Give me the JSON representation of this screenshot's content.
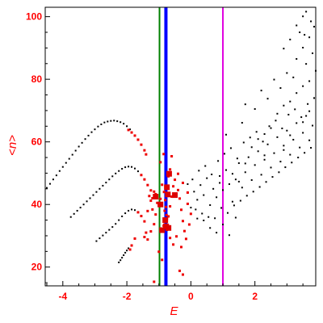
{
  "chart_data": {
    "type": "scatter",
    "title": "",
    "xlabel": "E",
    "ylabel": "<n>",
    "xlim": [
      -4.55,
      3.9
    ],
    "ylim": [
      14,
      103
    ],
    "x_ticks": [
      -4,
      -2,
      0,
      2
    ],
    "y_ticks": [
      20,
      40,
      60,
      80,
      100
    ],
    "grid": false,
    "colors": {
      "frame": "#000000",
      "text": "#ff0000",
      "black_points": "#000000",
      "red_points": "#ee0000",
      "line_green": "#008000",
      "line_blue": "#0000ff",
      "line_magenta": "#e000e0"
    },
    "vertical_lines": [
      {
        "x": -0.98,
        "color": "#008000"
      },
      {
        "x": -0.78,
        "color": "#0000ff"
      },
      {
        "x": 1.0,
        "color": "#e000e0"
      }
    ],
    "series": [
      {
        "color": "#000000",
        "marker_size": 2,
        "points": [
          [
            -4.5,
            45.3
          ],
          [
            -4.4,
            46.6
          ],
          [
            -4.3,
            48.0
          ],
          [
            -4.2,
            49.3
          ],
          [
            -4.1,
            50.7
          ],
          [
            -4.0,
            52.0
          ],
          [
            -3.9,
            53.3
          ],
          [
            -3.8,
            54.6
          ],
          [
            -3.7,
            55.9
          ],
          [
            -3.6,
            57.2
          ],
          [
            -3.5,
            58.5
          ],
          [
            -3.4,
            59.7
          ],
          [
            -3.3,
            60.9
          ],
          [
            -3.2,
            62.0
          ],
          [
            -3.1,
            63.1
          ],
          [
            -3.0,
            64.0
          ],
          [
            -2.9,
            64.9
          ],
          [
            -2.8,
            65.6
          ],
          [
            -2.7,
            66.2
          ],
          [
            -2.6,
            66.5
          ],
          [
            -2.5,
            66.7
          ],
          [
            -2.4,
            66.8
          ],
          [
            -2.3,
            66.6
          ],
          [
            -2.2,
            66.3
          ],
          [
            -2.1,
            65.8
          ],
          [
            -2.0,
            65.0
          ],
          [
            -1.9,
            64.0
          ],
          [
            -3.75,
            36.0
          ],
          [
            -3.65,
            37.0
          ],
          [
            -3.55,
            38.0
          ],
          [
            -3.45,
            39.0
          ],
          [
            -3.35,
            40.0
          ],
          [
            -3.25,
            41.0
          ],
          [
            -3.15,
            42.0
          ],
          [
            -3.05,
            43.0
          ],
          [
            -2.95,
            44.0
          ],
          [
            -2.85,
            45.0
          ],
          [
            -2.75,
            46.0
          ],
          [
            -2.65,
            47.0
          ],
          [
            -2.55,
            48.0
          ],
          [
            -2.45,
            49.0
          ],
          [
            -2.35,
            49.9
          ],
          [
            -2.25,
            50.7
          ],
          [
            -2.15,
            51.4
          ],
          [
            -2.05,
            51.9
          ],
          [
            -1.95,
            52.1
          ],
          [
            -1.85,
            52.0
          ],
          [
            -1.75,
            51.5
          ],
          [
            -1.65,
            50.6
          ],
          [
            -2.95,
            28.3
          ],
          [
            -2.85,
            29.2
          ],
          [
            -2.75,
            30.1
          ],
          [
            -2.65,
            31.0
          ],
          [
            -2.55,
            31.9
          ],
          [
            -2.45,
            32.8
          ],
          [
            -2.35,
            33.8
          ],
          [
            -2.25,
            35.0
          ],
          [
            -2.15,
            36.2
          ],
          [
            -2.05,
            37.2
          ],
          [
            -1.95,
            38.0
          ],
          [
            -1.85,
            38.4
          ],
          [
            -1.75,
            38.2
          ],
          [
            -2.25,
            21.5
          ],
          [
            -2.2,
            22.2
          ],
          [
            -2.15,
            23.0
          ],
          [
            -2.1,
            23.8
          ],
          [
            -2.05,
            24.6
          ],
          [
            -2.0,
            25.3
          ],
          [
            -1.95,
            26.0
          ],
          [
            0.1,
            44.1
          ],
          [
            0.2,
            41.5
          ],
          [
            0.3,
            46.2
          ],
          [
            0.4,
            43.0
          ],
          [
            0.5,
            48.4
          ],
          [
            0.6,
            39.8
          ],
          [
            0.7,
            45.0
          ],
          [
            0.8,
            42.3
          ],
          [
            0.9,
            49.1
          ],
          [
            1.0,
            44.6
          ],
          [
            1.1,
            51.0
          ],
          [
            1.2,
            46.5
          ],
          [
            1.3,
            40.9
          ],
          [
            1.4,
            48.0
          ],
          [
            1.5,
            53.2
          ],
          [
            1.6,
            45.4
          ],
          [
            1.7,
            50.3
          ],
          [
            1.8,
            55.1
          ],
          [
            1.9,
            47.8
          ],
          [
            2.0,
            52.6
          ],
          [
            2.1,
            57.0
          ],
          [
            2.2,
            49.5
          ],
          [
            2.3,
            54.3
          ],
          [
            2.4,
            59.2
          ],
          [
            2.5,
            51.8
          ],
          [
            2.6,
            56.4
          ],
          [
            2.7,
            61.5
          ],
          [
            2.8,
            53.7
          ],
          [
            2.9,
            58.8
          ],
          [
            3.0,
            63.6
          ],
          [
            3.1,
            55.9
          ],
          [
            3.2,
            60.7
          ],
          [
            3.3,
            66.0
          ],
          [
            3.4,
            58.2
          ],
          [
            3.5,
            62.9
          ],
          [
            3.6,
            68.3
          ],
          [
            3.7,
            60.5
          ],
          [
            3.8,
            65.2
          ],
          [
            0.15,
            38.4
          ],
          [
            0.35,
            37.1
          ],
          [
            0.55,
            36.0
          ],
          [
            0.75,
            35.6
          ],
          [
            0.95,
            38.9
          ],
          [
            1.15,
            37.3
          ],
          [
            1.35,
            39.7
          ],
          [
            1.55,
            41.2
          ],
          [
            1.75,
            42.8
          ],
          [
            1.95,
            44.1
          ],
          [
            2.15,
            45.6
          ],
          [
            2.35,
            47.2
          ],
          [
            2.55,
            48.8
          ],
          [
            2.75,
            50.3
          ],
          [
            2.95,
            51.9
          ],
          [
            3.15,
            53.4
          ],
          [
            3.35,
            55.0
          ],
          [
            3.55,
            56.5
          ],
          [
            3.75,
            58.1
          ],
          [
            0.25,
            50.8
          ],
          [
            0.45,
            52.3
          ],
          [
            0.65,
            49.6
          ],
          [
            0.85,
            53.9
          ],
          [
            1.05,
            56.2
          ],
          [
            1.25,
            58.0
          ],
          [
            1.45,
            54.7
          ],
          [
            1.65,
            59.8
          ],
          [
            1.85,
            61.4
          ],
          [
            2.05,
            63.2
          ],
          [
            2.25,
            60.1
          ],
          [
            2.45,
            65.0
          ],
          [
            2.65,
            66.8
          ],
          [
            2.85,
            64.3
          ],
          [
            3.05,
            68.7
          ],
          [
            3.25,
            70.4
          ],
          [
            3.45,
            67.9
          ],
          [
            3.65,
            72.1
          ],
          [
            3.85,
            74.0
          ],
          [
            0.6,
            32.5
          ],
          [
            0.8,
            31.0
          ],
          [
            1.0,
            33.6
          ],
          [
            1.2,
            30.2
          ],
          [
            1.4,
            35.8
          ],
          [
            0.4,
            34.9
          ],
          [
            0.2,
            35.5
          ],
          [
            0.0,
            39.0
          ],
          [
            -0.1,
            46.5
          ],
          [
            0.05,
            48.0
          ],
          [
            1.1,
            62.3
          ],
          [
            1.6,
            66.1
          ],
          [
            2.0,
            70.5
          ],
          [
            2.4,
            73.8
          ],
          [
            2.8,
            77.2
          ],
          [
            3.2,
            80.6
          ],
          [
            3.6,
            84.9
          ],
          [
            3.8,
            88.3
          ],
          [
            1.7,
            72.0
          ],
          [
            2.2,
            76.4
          ],
          [
            2.6,
            79.9
          ],
          [
            3.0,
            82.0
          ],
          [
            3.3,
            86.5
          ],
          [
            3.5,
            90.1
          ],
          [
            3.7,
            93.4
          ],
          [
            3.85,
            96.8
          ],
          [
            2.9,
            89.8
          ],
          [
            3.1,
            92.7
          ],
          [
            3.3,
            97.2
          ],
          [
            3.5,
            100.1
          ],
          [
            3.6,
            101.6
          ],
          [
            3.75,
            98.5
          ],
          [
            3.4,
            95.0
          ],
          [
            3.55,
            94.2
          ],
          [
            1.9,
            58.3
          ],
          [
            2.1,
            60.9
          ],
          [
            2.3,
            62.5
          ],
          [
            2.5,
            64.4
          ],
          [
            2.7,
            69.0
          ],
          [
            2.9,
            71.6
          ],
          [
            3.1,
            72.9
          ],
          [
            3.3,
            75.6
          ],
          [
            3.5,
            77.8
          ],
          [
            3.7,
            79.4
          ],
          [
            3.9,
            82.7
          ],
          [
            0.9,
            46.9
          ],
          [
            1.3,
            49.8
          ],
          [
            1.5,
            47.3
          ],
          [
            1.7,
            53.1
          ],
          [
            2.3,
            55.7
          ],
          [
            2.9,
            57.4
          ],
          [
            3.1,
            62.1
          ],
          [
            3.5,
            66.3
          ],
          [
            3.7,
            69.8
          ]
        ]
      },
      {
        "color": "#ee0000",
        "marker_size": 3,
        "points": [
          [
            -1.95,
            63.8
          ],
          [
            -1.85,
            63.0
          ],
          [
            -1.75,
            62.0
          ],
          [
            -1.65,
            60.7
          ],
          [
            -1.55,
            59.1
          ],
          [
            -1.45,
            57.3
          ],
          [
            -1.4,
            56.0
          ],
          [
            -1.55,
            49.4
          ],
          [
            -1.45,
            48.0
          ],
          [
            -1.35,
            46.2
          ],
          [
            -1.25,
            44.5
          ],
          [
            -1.65,
            37.5
          ],
          [
            -1.55,
            36.3
          ],
          [
            -1.45,
            34.6
          ],
          [
            -1.9,
            25.6
          ],
          [
            -1.85,
            26.9
          ],
          [
            -1.75,
            29.1
          ],
          [
            -1.3,
            42.7
          ],
          [
            -1.2,
            42.0
          ],
          [
            -1.1,
            43.3
          ],
          [
            -1.25,
            41.2
          ],
          [
            -1.15,
            44.1
          ],
          [
            -1.05,
            40.5
          ],
          [
            -1.35,
            37.9
          ],
          [
            -1.2,
            38.4
          ],
          [
            -1.1,
            36.8
          ],
          [
            -1.0,
            39.6
          ],
          [
            -0.95,
            41.8
          ],
          [
            -0.9,
            46.3
          ],
          [
            -0.85,
            33.2
          ],
          [
            -0.8,
            34.8
          ],
          [
            -0.75,
            31.9
          ],
          [
            -0.7,
            36.2
          ],
          [
            -0.85,
            32.1
          ],
          [
            -0.75,
            35.5
          ],
          [
            -0.65,
            39.4
          ],
          [
            -0.6,
            42.5
          ],
          [
            -0.55,
            45.8
          ],
          [
            -0.5,
            47.9
          ],
          [
            -0.7,
            49.0
          ],
          [
            -0.65,
            51.2
          ],
          [
            -0.4,
            44.6
          ],
          [
            -0.35,
            41.9
          ],
          [
            -0.3,
            38.3
          ],
          [
            -0.25,
            34.7
          ],
          [
            -0.2,
            31.5
          ],
          [
            -0.45,
            29.8
          ],
          [
            -0.55,
            27.2
          ],
          [
            -0.3,
            26.4
          ],
          [
            -0.15,
            29.0
          ],
          [
            -0.05,
            33.6
          ],
          [
            0.0,
            37.0
          ],
          [
            -0.1,
            40.2
          ],
          [
            -1.45,
            29.6
          ],
          [
            -1.35,
            28.8
          ],
          [
            -1.25,
            31.4
          ],
          [
            -1.15,
            33.7
          ],
          [
            -1.4,
            31.0
          ],
          [
            -0.95,
            53.5
          ],
          [
            -0.85,
            56.1
          ],
          [
            -0.6,
            55.4
          ],
          [
            -0.4,
            49.8
          ],
          [
            -0.25,
            46.9
          ],
          [
            -0.1,
            43.8
          ],
          [
            -1.0,
            24.9
          ],
          [
            -0.9,
            22.3
          ],
          [
            -0.35,
            18.8
          ],
          [
            -0.25,
            17.6
          ],
          [
            -1.15,
            15.3
          ],
          [
            -0.65,
            29.3
          ],
          [
            -0.82,
            38.0
          ],
          [
            -0.78,
            39.2
          ],
          [
            -0.8,
            41.4
          ],
          [
            -0.76,
            36.6
          ],
          [
            -0.84,
            44.0
          ],
          [
            -0.72,
            33.4
          ]
        ]
      },
      {
        "color": "#dd0000",
        "marker_size": 7,
        "points": [
          [
            -1.1,
            42.5
          ],
          [
            -0.95,
            40.0
          ],
          [
            -0.8,
            35.0
          ],
          [
            -0.78,
            33.0
          ],
          [
            -0.9,
            31.8
          ],
          [
            -0.7,
            32.5
          ],
          [
            -0.75,
            45.5
          ],
          [
            -0.68,
            49.8
          ],
          [
            -0.72,
            43.2
          ],
          [
            -0.5,
            43.0
          ]
        ]
      }
    ]
  }
}
